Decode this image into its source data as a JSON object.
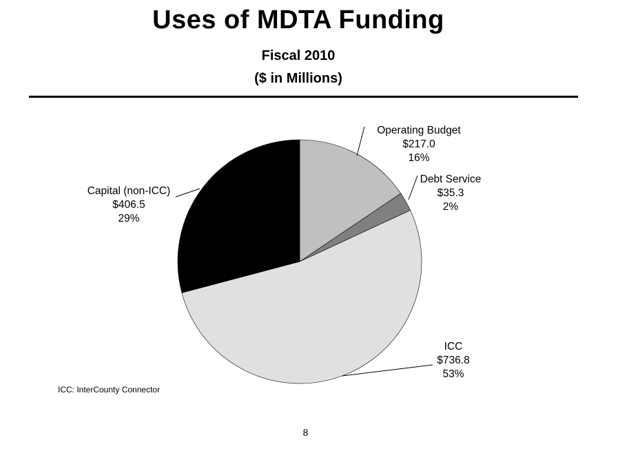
{
  "page": {
    "title": "Uses of MDTA Funding",
    "subtitle_line1": "Fiscal 2010",
    "subtitle_line2": "($ in Millions)",
    "footnote": "ICC: InterCounty Connector",
    "page_number": "8"
  },
  "chart_data": {
    "type": "pie",
    "title": "",
    "unit": "$ in Millions",
    "start_angle_deg": 0,
    "direction": "clockwise",
    "slices": [
      {
        "name": "Operating Budget",
        "value": 217.0,
        "value_label": "$217.0",
        "percent": 16,
        "percent_label": "16%",
        "color": "#c0c0c0"
      },
      {
        "name": "Debt Service",
        "value": 35.3,
        "value_label": "$35.3",
        "percent": 2,
        "percent_label": "2%",
        "color": "#808080"
      },
      {
        "name": "ICC",
        "value": 736.8,
        "value_label": "$736.8",
        "percent": 53,
        "percent_label": "53%",
        "color": "#e0e0e0"
      },
      {
        "name": "Capital (non-ICC)",
        "value": 406.5,
        "value_label": "$406.5",
        "percent": 29,
        "percent_label": "29%",
        "color": "#000000"
      }
    ]
  }
}
